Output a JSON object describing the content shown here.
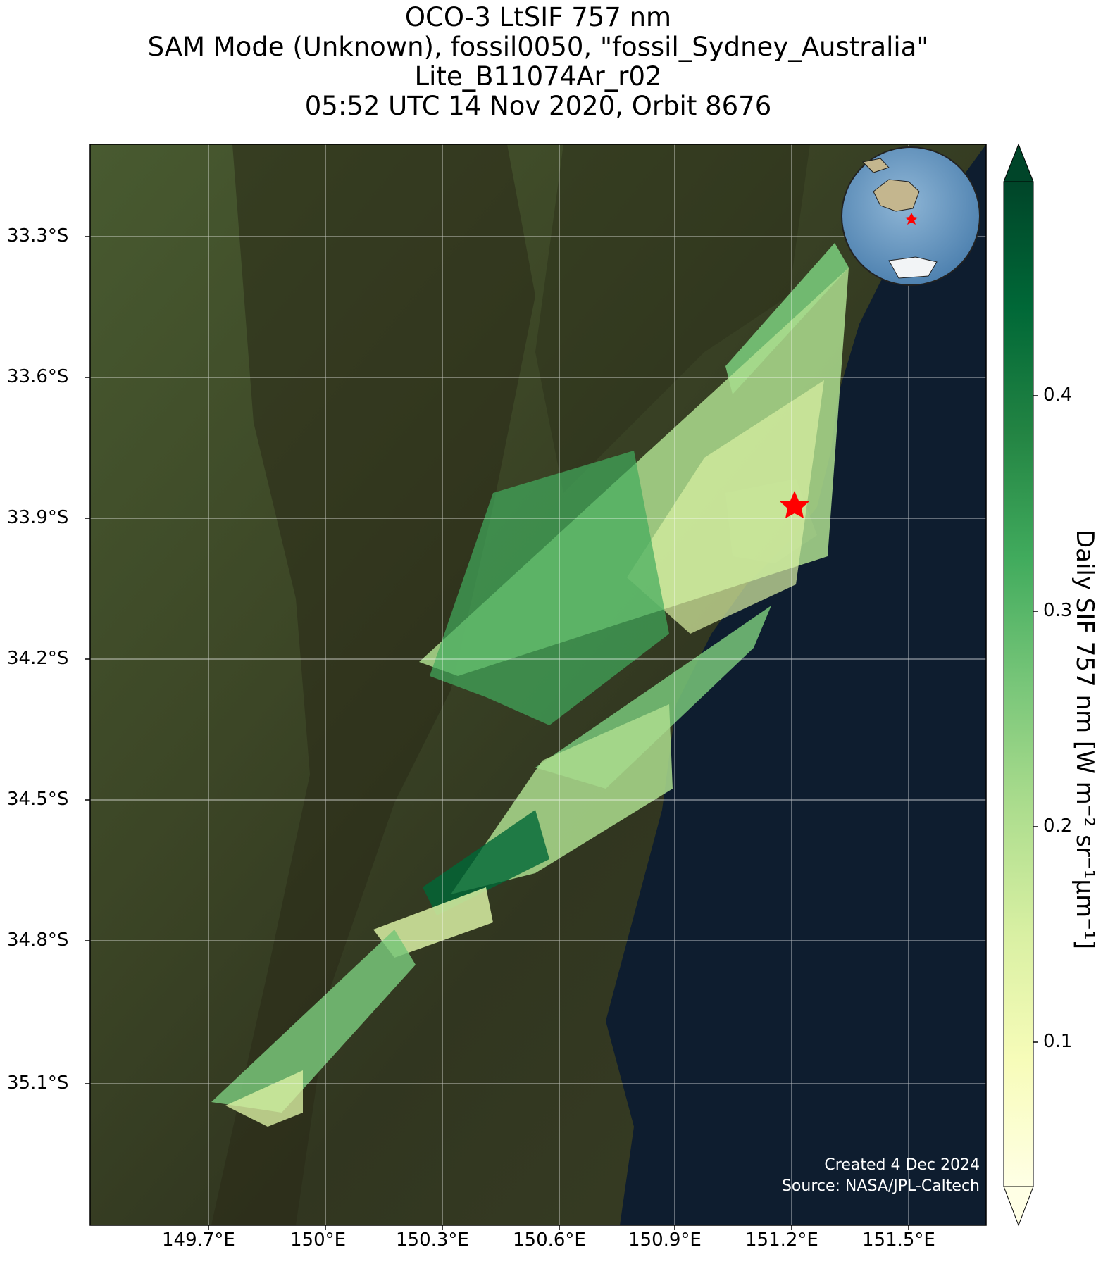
{
  "title": {
    "line1": "OCO-3 LtSIF 757 nm",
    "line2": "SAM Mode (Unknown), fossil0050, \"fossil_Sydney_Australia\"",
    "line3": "Lite_B11074Ar_r02",
    "line4": "05:52 UTC 14 Nov 2020, Orbit 8676"
  },
  "map": {
    "lat_labels": [
      "33.3°S",
      "33.6°S",
      "33.9°S",
      "34.2°S",
      "34.5°S",
      "34.8°S",
      "35.1°S"
    ],
    "lon_labels": [
      "149.7°E",
      "150°E",
      "150.3°E",
      "150.6°E",
      "150.9°E",
      "151.2°E",
      "151.5°E"
    ],
    "target_site": {
      "name": "fossil_Sydney_Australia",
      "marker": "red-star"
    },
    "inset_globe": {
      "region": "Australia",
      "marker": "red-star"
    },
    "basemap": "satellite imagery",
    "colors": {
      "land_green": "#3b4a26",
      "land_dark": "#2b2e18",
      "ocean": "#0e1d2f",
      "grid": "#ffffff",
      "marker": "#ff0000"
    }
  },
  "colorbar": {
    "label": "Daily SIF 757 nm [W m⁻² sr⁻¹µm⁻¹]",
    "ticks": [
      "0.1",
      "0.2",
      "0.3",
      "0.4"
    ],
    "colormap": "YlGn",
    "extend": "both"
  },
  "credit": {
    "created": "Created 4 Dec 2024",
    "source": "Source: NASA/JPL-Caltech"
  }
}
